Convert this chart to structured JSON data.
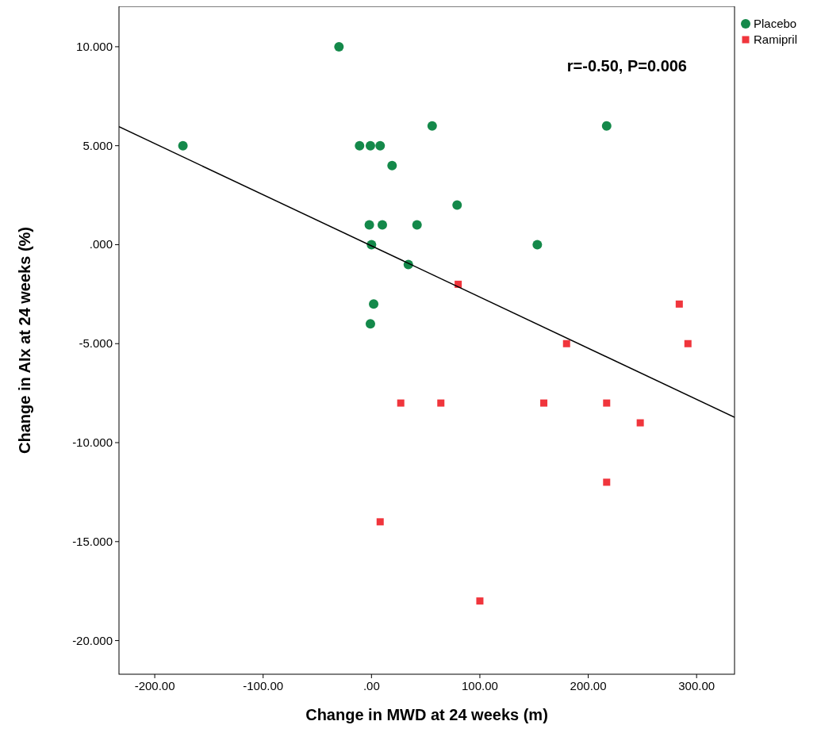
{
  "chart_data": {
    "type": "scatter",
    "xlabel": "Change in MWD at 24 weeks (m)",
    "ylabel": "Change in AIx at 24 weeks (%)",
    "xlim": [
      -233,
      335
    ],
    "ylim": [
      -21.7,
      12.04
    ],
    "xticks": [
      {
        "value": -200,
        "label": "-200.00"
      },
      {
        "value": -100,
        "label": "-100.00"
      },
      {
        "value": 0,
        "label": ".00"
      },
      {
        "value": 100,
        "label": "100.00"
      },
      {
        "value": 200,
        "label": "200.00"
      },
      {
        "value": 300,
        "label": "300.00"
      }
    ],
    "yticks": [
      {
        "value": -20,
        "label": "-20.000"
      },
      {
        "value": -15,
        "label": "-15.000"
      },
      {
        "value": -10,
        "label": "-10.000"
      },
      {
        "value": -5,
        "label": "-5.000"
      },
      {
        "value": 0,
        "label": ".000"
      },
      {
        "value": 5,
        "label": "5.000"
      },
      {
        "value": 10,
        "label": "10.000"
      }
    ],
    "grid": false,
    "legend": "top right",
    "annotations": [
      "r=-0.50, P=0.006"
    ],
    "series": [
      {
        "name": "Placebo",
        "color": "#14894a",
        "marker": "circle",
        "x": [
          -174,
          -30,
          -11,
          -1,
          8,
          19,
          56,
          79,
          -2,
          10,
          42,
          0,
          34,
          2,
          -1,
          153,
          217
        ],
        "values": [
          5,
          10,
          5,
          5,
          5,
          4,
          6,
          2,
          1,
          1,
          1,
          0,
          -1,
          -3,
          -4,
          0,
          6
        ]
      },
      {
        "name": "Ramipril",
        "color": "#f0353c",
        "marker": "square",
        "x": [
          80,
          27,
          64,
          159,
          180,
          217,
          217,
          8,
          100,
          248,
          284,
          292
        ],
        "values": [
          -2,
          -8,
          -8,
          -8,
          -5,
          -8,
          -12,
          -14,
          -18,
          -9,
          -3,
          -5
        ]
      },
      {
        "type": "line",
        "color": "#000000",
        "marker": "none",
        "x": [
          -233,
          335
        ],
        "values": [
          5.96,
          -8.72
        ]
      }
    ]
  }
}
